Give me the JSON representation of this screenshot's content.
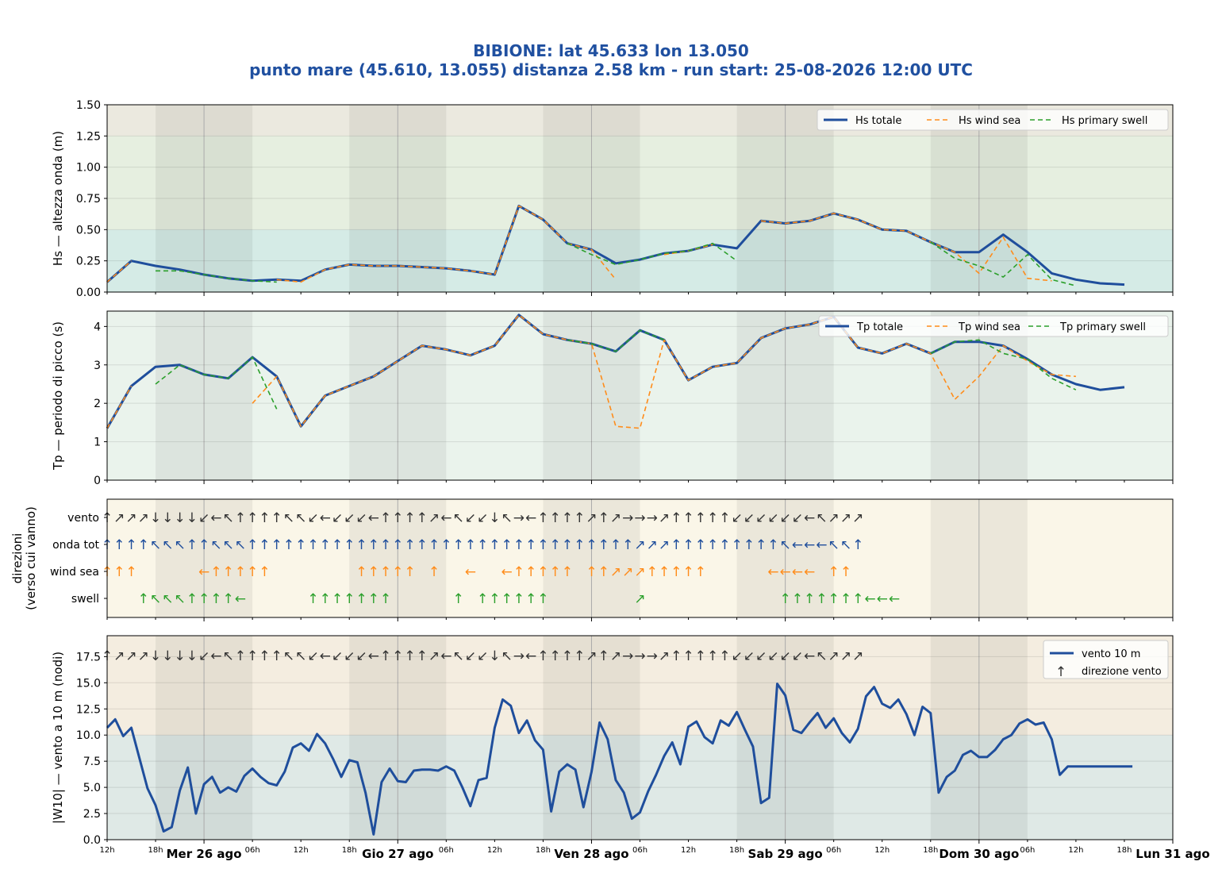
{
  "title_line1": "BIBIONE: lat 45.633 lon 13.050",
  "title_line2": "punto mare (45.610, 13.055)  distanza 2.58 km  -  run start: 25-08-2026 12:00 UTC",
  "colors": {
    "totale": "#1f4e9c",
    "wind_sea": "#ff8c1a",
    "swell": "#2ca02c",
    "vento_arrow": "#333333",
    "hs_band_low": "#d5ebe6",
    "hs_band_mid": "#e6efe0",
    "hs_band_high": "#ebe9df",
    "tp_bg": "#eaf3ec",
    "dir_bg": "#faf6e8",
    "wind_band_low": "#dfe9e6",
    "wind_band_high": "#f4ede0",
    "night": "#000000"
  },
  "time_axis": {
    "start": "25-08-2026 12:00",
    "end": "31-08-2026 00:00",
    "step_hours": 3,
    "hour_ticks": [
      "12h",
      "18h",
      "06h",
      "12h",
      "18h",
      "06h",
      "12h",
      "18h",
      "06h",
      "12h",
      "18h",
      "06h",
      "12h",
      "18h",
      "06h",
      "12h",
      "18h"
    ],
    "day_labels": [
      "Mer 26 ago",
      "Gio 27 ago",
      "Ven 28 ago",
      "Sab 29 ago",
      "Dom 30 ago",
      "Lun 31 ago"
    ],
    "night_shading": "18h-06h"
  },
  "chart_data": [
    {
      "type": "line",
      "ylabel": "Hs — altezza onda (m)",
      "ylim": [
        0,
        1.5
      ],
      "yticks": [
        "0.00",
        "0.25",
        "0.50",
        "0.75",
        "1.00",
        "1.25",
        "1.50"
      ],
      "legend_position": "top-right",
      "x": [
        "25-08 12:00",
        "25-08 15:00",
        "25-08 18:00",
        "25-08 21:00",
        "26-08 00:00",
        "26-08 03:00",
        "26-08 06:00",
        "26-08 09:00",
        "26-08 12:00",
        "26-08 15:00",
        "26-08 18:00",
        "26-08 21:00",
        "27-08 00:00",
        "27-08 03:00",
        "27-08 06:00",
        "27-08 09:00",
        "27-08 12:00",
        "27-08 15:00",
        "27-08 18:00",
        "27-08 21:00",
        "28-08 00:00",
        "28-08 03:00",
        "28-08 06:00",
        "28-08 09:00",
        "28-08 12:00",
        "28-08 15:00",
        "28-08 18:00",
        "28-08 21:00",
        "29-08 00:00",
        "29-08 03:00",
        "29-08 06:00",
        "29-08 09:00",
        "29-08 12:00",
        "29-08 15:00",
        "29-08 18:00",
        "29-08 21:00",
        "30-08 00:00",
        "30-08 03:00",
        "30-08 06:00",
        "30-08 09:00",
        "30-08 12:00",
        "30-08 15:00",
        "30-08 18:00"
      ],
      "series": [
        {
          "name": "Hs totale",
          "values": [
            0.08,
            0.25,
            0.21,
            0.18,
            0.14,
            0.11,
            0.09,
            0.1,
            0.09,
            0.18,
            0.22,
            0.21,
            0.21,
            0.2,
            0.19,
            0.17,
            0.14,
            0.69,
            0.58,
            0.39,
            0.34,
            0.23,
            0.26,
            0.31,
            0.33,
            0.38,
            0.35,
            0.57,
            0.55,
            0.57,
            0.63,
            0.58,
            0.5,
            0.49,
            0.4,
            0.32,
            0.32,
            0.46,
            0.32,
            0.15,
            0.1,
            0.07,
            0.06
          ]
        },
        {
          "name": "Hs wind sea",
          "values": [
            0.08,
            0.25,
            null,
            null,
            null,
            null,
            null,
            0.1,
            0.08,
            0.18,
            0.22,
            0.21,
            0.21,
            0.2,
            0.19,
            0.17,
            0.14,
            0.69,
            0.58,
            0.39,
            0.34,
            0.1,
            null,
            0.3,
            0.33,
            0.38,
            null,
            0.57,
            0.55,
            0.57,
            0.63,
            0.58,
            0.5,
            0.49,
            0.4,
            0.32,
            0.15,
            0.44,
            0.11,
            0.09,
            null,
            null,
            null
          ]
        },
        {
          "name": "Hs primary swell",
          "values": [
            null,
            null,
            0.17,
            0.17,
            0.14,
            0.11,
            0.09,
            0.08,
            null,
            null,
            null,
            null,
            null,
            null,
            null,
            null,
            null,
            null,
            null,
            0.39,
            0.3,
            0.22,
            0.26,
            0.31,
            0.33,
            0.39,
            0.25,
            null,
            null,
            null,
            null,
            null,
            null,
            null,
            0.4,
            0.27,
            0.21,
            0.12,
            0.3,
            0.1,
            0.05,
            null,
            null
          ]
        }
      ]
    },
    {
      "type": "line",
      "ylabel": "Tp — periodo di picco (s)",
      "ylim": [
        0,
        4.4
      ],
      "yticks": [
        "0",
        "1",
        "2",
        "3",
        "4"
      ],
      "legend_position": "top-right",
      "x": [
        "25-08 12:00",
        "25-08 15:00",
        "25-08 18:00",
        "25-08 21:00",
        "26-08 00:00",
        "26-08 03:00",
        "26-08 06:00",
        "26-08 09:00",
        "26-08 12:00",
        "26-08 15:00",
        "26-08 18:00",
        "26-08 21:00",
        "27-08 00:00",
        "27-08 03:00",
        "27-08 06:00",
        "27-08 09:00",
        "27-08 12:00",
        "27-08 15:00",
        "27-08 18:00",
        "27-08 21:00",
        "28-08 00:00",
        "28-08 03:00",
        "28-08 06:00",
        "28-08 09:00",
        "28-08 12:00",
        "28-08 15:00",
        "28-08 18:00",
        "28-08 21:00",
        "29-08 00:00",
        "29-08 03:00",
        "29-08 06:00",
        "29-08 09:00",
        "29-08 12:00",
        "29-08 15:00",
        "29-08 18:00",
        "29-08 21:00",
        "30-08 00:00",
        "30-08 03:00",
        "30-08 06:00",
        "30-08 09:00",
        "30-08 12:00",
        "30-08 15:00",
        "30-08 18:00"
      ],
      "series": [
        {
          "name": "Tp totale",
          "values": [
            1.35,
            2.45,
            2.95,
            3.0,
            2.75,
            2.65,
            3.2,
            2.7,
            1.4,
            2.2,
            2.45,
            2.7,
            3.1,
            3.5,
            3.4,
            3.25,
            3.5,
            4.3,
            3.8,
            3.65,
            3.55,
            3.35,
            3.9,
            3.65,
            2.6,
            2.95,
            3.05,
            3.7,
            3.95,
            4.05,
            4.25,
            3.45,
            3.3,
            3.55,
            3.3,
            3.6,
            3.6,
            3.5,
            3.15,
            2.75,
            2.5,
            2.35,
            2.42
          ]
        },
        {
          "name": "Tp wind sea",
          "values": [
            1.35,
            2.45,
            null,
            null,
            null,
            null,
            2.0,
            2.7,
            1.4,
            2.2,
            2.45,
            2.7,
            3.1,
            3.5,
            3.4,
            3.25,
            3.5,
            4.3,
            3.8,
            3.65,
            3.55,
            1.4,
            1.35,
            3.65,
            2.6,
            2.95,
            3.05,
            3.7,
            3.95,
            4.05,
            4.25,
            3.45,
            3.3,
            3.55,
            3.3,
            2.1,
            2.7,
            3.5,
            3.1,
            2.75,
            2.7,
            null,
            null
          ]
        },
        {
          "name": "Tp primary swell",
          "values": [
            null,
            null,
            2.5,
            3.0,
            2.75,
            2.65,
            3.2,
            1.85,
            null,
            null,
            null,
            null,
            null,
            null,
            null,
            null,
            null,
            null,
            null,
            3.65,
            3.55,
            3.35,
            3.9,
            3.65,
            null,
            null,
            null,
            null,
            null,
            null,
            null,
            null,
            null,
            null,
            3.3,
            3.6,
            3.65,
            3.3,
            3.15,
            2.65,
            2.35,
            null,
            null
          ]
        }
      ]
    },
    {
      "type": "table",
      "ylabel": "direzioni\n(verso cui vanno)",
      "rows": [
        {
          "name": "vento",
          "arrows": "↑↗↗↗↓↓↓↓↙←↖↑↑↑↑↖↖↙←↙↙↙←↑↑↑↑↗←↖↙↙↓↖→←↑↑↑↑↗↑↗→→→↗↑↑↑↑↑↙↙↙↙↙↙←↖↗↗↗"
        },
        {
          "name": "onda tot",
          "arrows": "↑↑↑↑↖↖↖↑↑↖↖↖↑↑↑↑↑↑↑↑↑↑↑↑↑↑↑↑↑↑↑↑↑↑↑↑↑↑↑↑↑↑↑↑↗↗↗↑↑↑↑↑↑↑↑↑↖←←←↖↖↑"
        },
        {
          "name": "wind sea",
          "arrows": "↑↑↑·····←↑↑↑↑↑·······↑↑↑↑↑·↑··←··←↑↑↑↑↑·↑↑↗↗↗↑↑↑↑↑·····←←←←·↑↑"
        },
        {
          "name": "swell",
          "arrows": "···↑↖↖↖↑↑↑↑←·····↑↑↑↑↑↑↑·····↑·↑↑↑↑↑↑·······↗···········↑↑↑↑↑↑↑←←←"
        }
      ]
    },
    {
      "type": "line",
      "ylabel": "|W10| — vento a 10 m (nodi)",
      "ylim": [
        0,
        19.5
      ],
      "yticks": [
        "0.0",
        "2.5",
        "5.0",
        "7.5",
        "10.0",
        "12.5",
        "15.0",
        "17.5"
      ],
      "legend_position": "top-right",
      "x_step_hours": 1.5,
      "series": [
        {
          "name": "vento 10 m",
          "values": [
            10.7,
            11.5,
            9.9,
            10.7,
            7.8,
            4.9,
            3.3,
            0.8,
            1.2,
            4.7,
            6.9,
            2.5,
            5.3,
            6.0,
            4.5,
            5.0,
            4.6,
            6.1,
            6.8,
            6.0,
            5.4,
            5.2,
            6.5,
            8.8,
            9.2,
            8.5,
            10.1,
            9.2,
            7.7,
            6.0,
            7.6,
            7.4,
            4.5,
            0.5,
            5.5,
            6.8,
            5.6,
            5.5,
            6.6,
            6.7,
            6.7,
            6.6,
            7.0,
            6.6,
            5.0,
            3.2,
            5.7,
            5.9,
            10.7,
            13.4,
            12.8,
            10.2,
            11.4,
            9.5,
            8.6,
            2.7,
            6.5,
            7.2,
            6.7,
            3.1,
            6.5,
            11.2,
            9.6,
            5.7,
            4.5,
            2.0,
            2.6,
            4.6,
            6.2,
            8.0,
            9.3,
            7.2,
            10.8,
            11.3,
            9.8,
            9.2,
            11.4,
            10.9,
            12.2,
            10.5,
            8.9,
            3.5,
            4.0,
            14.9,
            13.8,
            10.5,
            10.2,
            11.2,
            12.1,
            10.7,
            11.6,
            10.2,
            9.3,
            10.6,
            13.7,
            14.6,
            13.0,
            12.6,
            13.4,
            12.0,
            10.0,
            12.7,
            12.1,
            4.5,
            6.0,
            6.6,
            8.1,
            8.5,
            7.9,
            7.9,
            8.6,
            9.6,
            10.0,
            11.1,
            11.5,
            11.0,
            11.2,
            9.6,
            6.2,
            7.0,
            7.0,
            7.0,
            7.0,
            7.0,
            7.0,
            7.0,
            7.0,
            7.0
          ]
        },
        {
          "name": "direzione vento",
          "arrows": "↑↗↗↗↓↓↓↓↙←↖↑↑↑↑↖↖↙←↙↙↙←↑↑↑↑↗←↖↙↙↓↖→←↑↑↑↑↗↑↗→→→↗↑↑↑↑↑↙↙↙↙↙↙←↖↗↗↗"
        }
      ]
    }
  ]
}
